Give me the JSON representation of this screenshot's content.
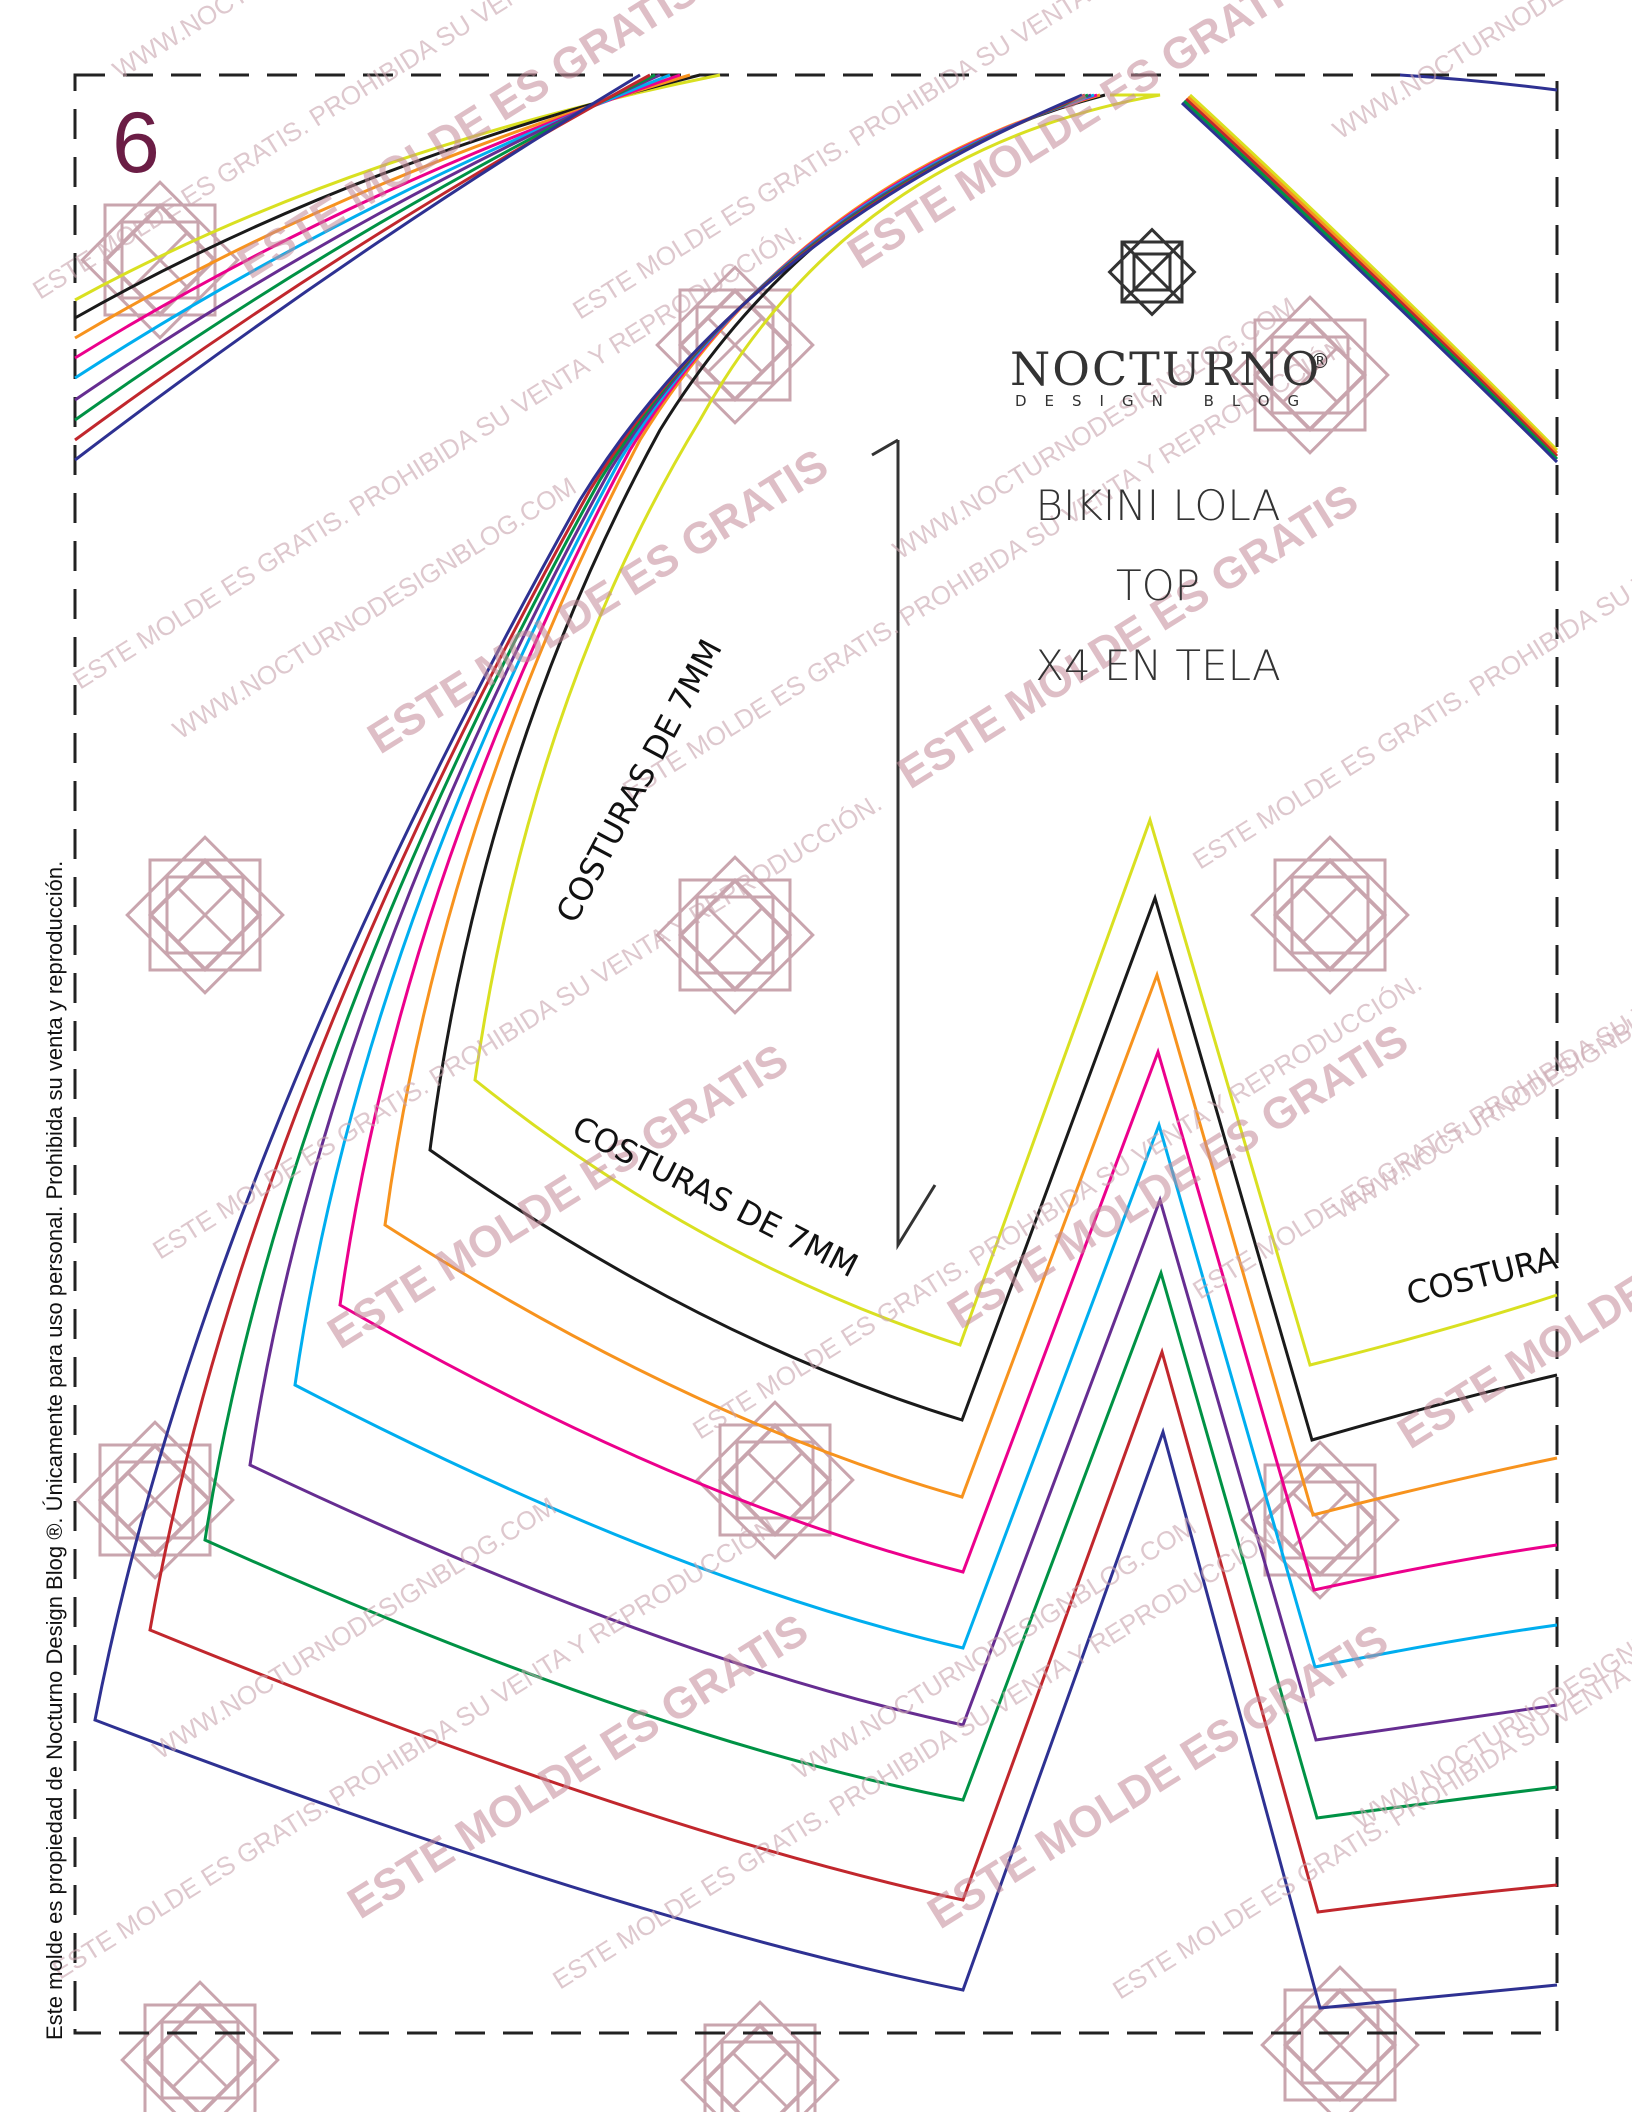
{
  "page": {
    "number": "6"
  },
  "brand": {
    "name": "NOCTURNO",
    "registered": "®",
    "tagline": "DESIGN BLOG"
  },
  "pattern": {
    "name": "BIKINI LOLA",
    "piece": "TOP",
    "cut": "X4 EN TELA",
    "seam_labels": [
      "COSTURAS DE 7MM",
      "COSTURAS DE 7MM",
      "COSTURA"
    ]
  },
  "side_notice": "Este molde es propiedad de Nocturno Design Blog ®. Únicamente para uso personal. Prohibida su venta y reproducción.",
  "watermarks": {
    "primary": "ESTE MOLDE ES GRATIS",
    "secondary": "ESTE MOLDE ES GRATIS. PROHIBIDA SU VENTA Y REPRODUCCIÓN.",
    "url": "WWW.NOCTURNODESIGNBLOG.COM"
  },
  "size_line_colors": [
    "#d9e021",
    "#1a1a1a",
    "#f7931e",
    "#ec008c",
    "#00aeef",
    "#662d91",
    "#009245",
    "#c1272d",
    "#2e3192"
  ],
  "accent_colors": {
    "page_number": "#6b1d45",
    "watermark": "#c48a99",
    "logo": "#333333"
  }
}
